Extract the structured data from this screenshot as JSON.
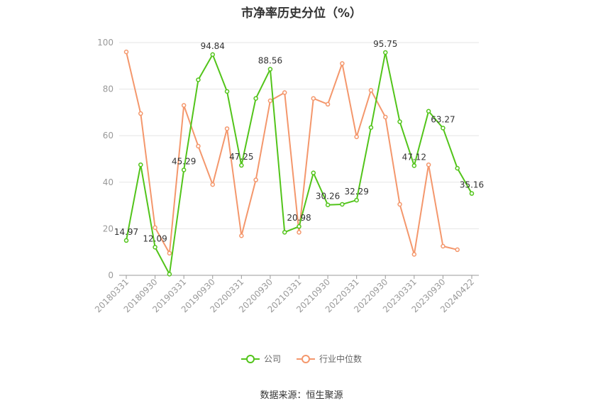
{
  "chart_data": {
    "type": "line",
    "title": "市净率历史分位（%）",
    "source": "数据来源：恒生聚源",
    "ylim": [
      0,
      100
    ],
    "yticks": [
      0,
      20,
      40,
      60,
      80,
      100
    ],
    "xticks": [
      "20180331",
      "20180930",
      "20190331",
      "20190930",
      "20200331",
      "20200930",
      "20210331",
      "20210930",
      "20220331",
      "20220930",
      "20230331",
      "20230930",
      "20240422"
    ],
    "legend": "bottom",
    "series": [
      {
        "name": "公司",
        "color": "#52c41a",
        "values": [
          14.97,
          47.5,
          12.09,
          0.5,
          45.29,
          84.0,
          94.84,
          79.0,
          47.25,
          76.0,
          88.56,
          18.5,
          20.98,
          44.0,
          30.26,
          30.5,
          32.29,
          63.5,
          95.75,
          66.0,
          47.12,
          70.5,
          63.27,
          46.0,
          35.16
        ],
        "labeled": {
          "0": "14.97",
          "2": "12.09",
          "4": "45.29",
          "6": "94.84",
          "8": "47.25",
          "10": "88.56",
          "12": "20.98",
          "14": "30.26",
          "16": "32.29",
          "18": "95.75",
          "20": "47.12",
          "22": "63.27",
          "24": "35.16"
        }
      },
      {
        "name": "行业中位数",
        "color": "#f4976c",
        "values": [
          96.0,
          69.5,
          20.5,
          9.5,
          73.0,
          55.5,
          39.0,
          63.0,
          17.0,
          41.0,
          75.0,
          78.5,
          18.5,
          76.0,
          73.5,
          91.0,
          59.5,
          79.5,
          68.0,
          30.5,
          9.0,
          47.5,
          12.5,
          11.0,
          null
        ]
      }
    ]
  }
}
